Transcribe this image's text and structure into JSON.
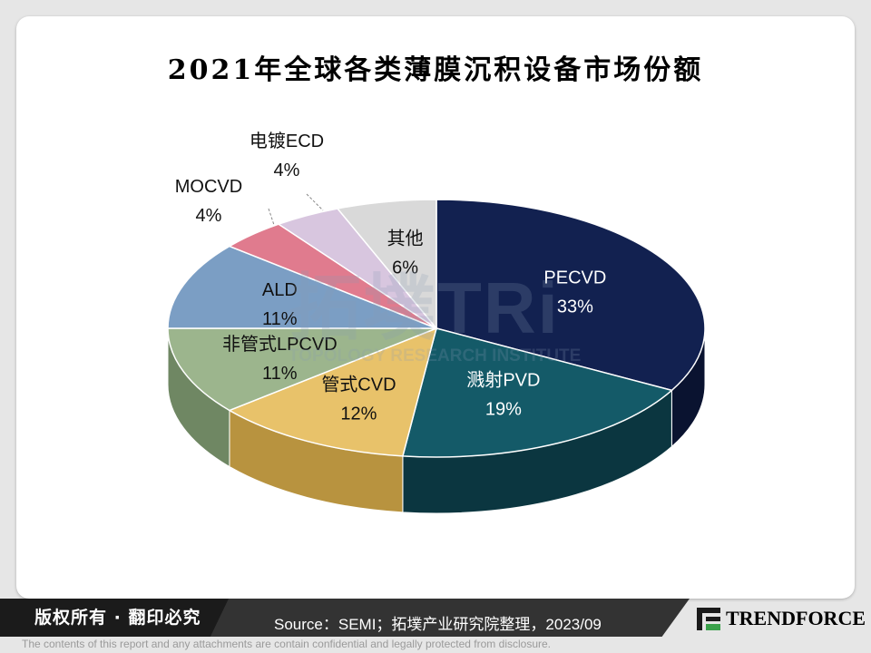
{
  "chart_data": {
    "type": "pie",
    "title": "2021年全球各类薄膜沉积设备市场份额",
    "slices": [
      {
        "label": "PECVD",
        "value": 33,
        "display": "33%",
        "color": "#122150",
        "side": "#0a1330"
      },
      {
        "label": "溅射PVD",
        "value": 19,
        "display": "19%",
        "color": "#145a68",
        "side": "#0b3640"
      },
      {
        "label": "管式CVD",
        "value": 12,
        "display": "12%",
        "color": "#e8c26a",
        "side": "#b8933f"
      },
      {
        "label": "非管式LPCVD",
        "value": 11,
        "display": "11%",
        "color": "#9cb58d",
        "side": "#6f8763"
      },
      {
        "label": "ALD",
        "value": 11,
        "display": "11%",
        "color": "#7b9ec4",
        "side": "#56789c"
      },
      {
        "label": "MOCVD",
        "value": 4,
        "display": "4%",
        "color": "#e07b8e",
        "side": "#b05466"
      },
      {
        "label": "电镀ECD",
        "value": 4,
        "display": "4%",
        "color": "#d8c6df",
        "side": "#a996b0"
      },
      {
        "label": "其他",
        "value": 6,
        "display": "6%",
        "color": "#d9d9d9",
        "side": "#aaaaaa"
      }
    ]
  },
  "watermark": {
    "big": "拓墣TRi",
    "small": "TOPOLOGY RESEARCH INSTITUTE"
  },
  "footer": {
    "copyright": "版权所有 · 翻印必究",
    "source": "Source：SEMI；拓墣产业研究院整理，2023/09",
    "logo": "TRENDFORCE",
    "disclaimer": "The contents of this report and any attachments are contain confidential and legally protected from disclosure."
  }
}
